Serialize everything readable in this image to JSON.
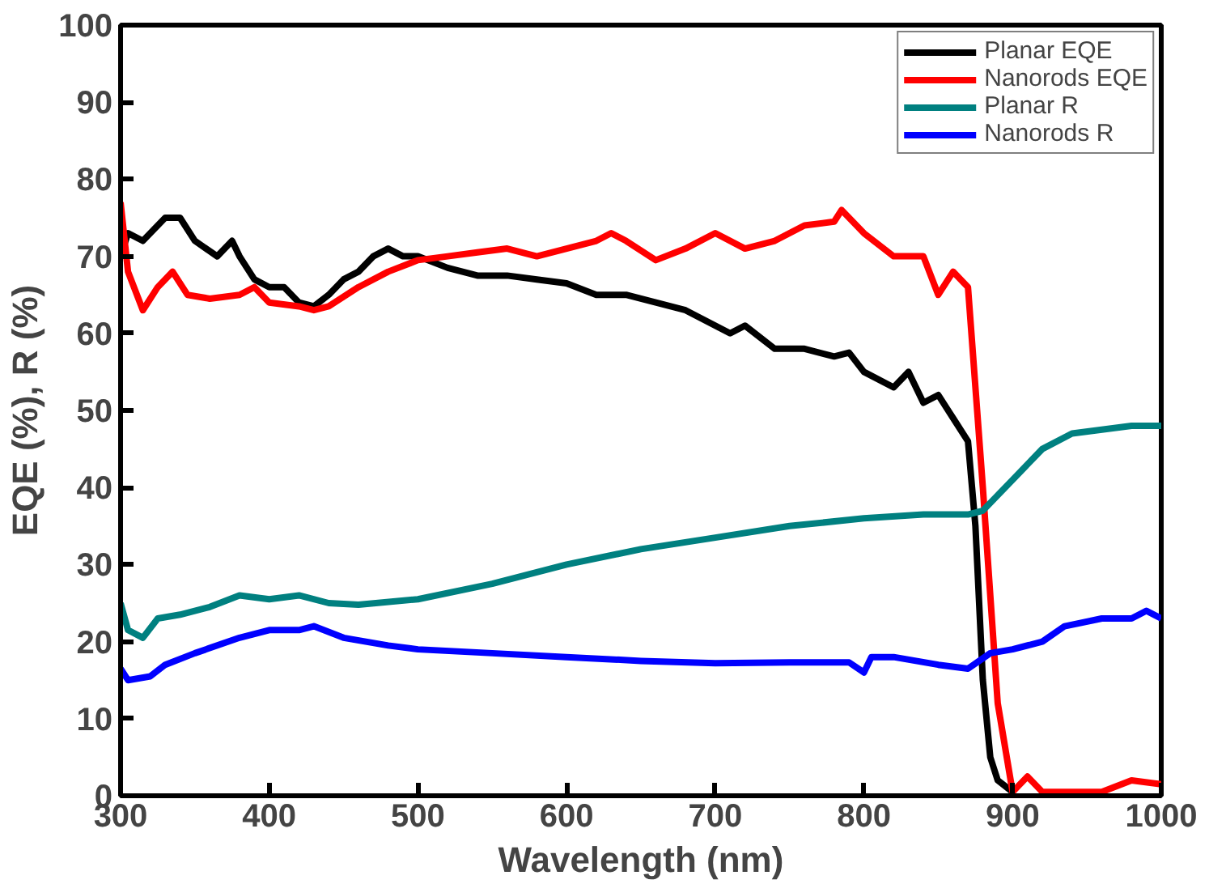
{
  "chart_data": {
    "type": "line",
    "xlabel": "Wavelength (nm)",
    "ylabel": "EQE (%), R (%)",
    "xlim": [
      300,
      1000
    ],
    "ylim": [
      0,
      100
    ],
    "xticks": [
      300,
      400,
      500,
      600,
      700,
      800,
      900,
      1000
    ],
    "yticks": [
      0,
      10,
      20,
      30,
      40,
      50,
      60,
      70,
      80,
      90,
      100
    ],
    "grid": false,
    "legend": "top right",
    "marker": "none",
    "line_style": "solid",
    "series": [
      {
        "name": "Planar EQE",
        "color": "#000000",
        "x": [
          300,
          305,
          315,
          330,
          340,
          350,
          365,
          375,
          380,
          390,
          400,
          410,
          420,
          430,
          440,
          450,
          460,
          470,
          480,
          490,
          500,
          520,
          540,
          560,
          580,
          600,
          620,
          640,
          660,
          680,
          700,
          710,
          720,
          740,
          760,
          780,
          790,
          800,
          820,
          830,
          840,
          850,
          860,
          870,
          875,
          880,
          885,
          890,
          900
        ],
        "values": [
          70,
          73,
          72,
          75,
          75,
          72,
          70,
          72,
          70,
          67,
          66,
          66,
          64,
          63.5,
          65,
          67,
          68,
          70,
          71,
          70,
          70,
          68.5,
          67.5,
          67.5,
          67,
          66.5,
          65,
          65,
          64,
          63,
          61,
          60,
          61,
          58,
          58,
          57,
          57.5,
          55,
          53,
          55,
          51,
          52,
          49,
          46,
          35,
          15,
          5,
          2,
          0.5
        ]
      },
      {
        "name": "Nanorods EQE",
        "color": "#ff0000",
        "x": [
          300,
          305,
          315,
          325,
          335,
          345,
          360,
          380,
          390,
          400,
          420,
          430,
          440,
          460,
          480,
          500,
          520,
          540,
          560,
          580,
          600,
          620,
          630,
          640,
          660,
          680,
          700,
          720,
          740,
          760,
          780,
          785,
          800,
          820,
          840,
          850,
          860,
          870,
          880,
          890,
          900,
          910,
          920,
          940,
          960,
          980,
          1000
        ],
        "values": [
          77,
          68,
          63,
          66,
          68,
          65,
          64.5,
          65,
          66,
          64,
          63.5,
          63,
          63.5,
          66,
          68,
          69.5,
          70,
          70.5,
          71,
          70,
          71,
          72,
          73,
          72,
          69.5,
          71,
          73,
          71,
          72,
          74,
          74.5,
          76,
          73,
          70,
          70,
          65,
          68,
          66,
          40,
          12,
          0.5,
          2.5,
          0.5,
          0.5,
          0.5,
          2,
          1.5
        ]
      },
      {
        "name": "Planar R",
        "color": "#008080",
        "x": [
          300,
          305,
          315,
          325,
          340,
          360,
          380,
          400,
          420,
          440,
          460,
          500,
          550,
          600,
          650,
          700,
          750,
          800,
          840,
          870,
          880,
          900,
          920,
          940,
          960,
          980,
          1000
        ],
        "values": [
          25,
          21.5,
          20.5,
          23,
          23.5,
          24.5,
          26,
          25.5,
          26,
          25,
          24.8,
          25.5,
          27.5,
          30,
          32,
          33.5,
          35,
          36,
          36.5,
          36.5,
          37,
          41,
          45,
          47,
          47.5,
          48,
          48
        ]
      },
      {
        "name": "Nanorods R",
        "color": "#0000ff",
        "x": [
          300,
          305,
          320,
          330,
          350,
          380,
          400,
          420,
          430,
          450,
          480,
          500,
          550,
          600,
          650,
          700,
          750,
          790,
          800,
          805,
          820,
          850,
          870,
          885,
          900,
          920,
          935,
          960,
          980,
          990,
          1000
        ],
        "values": [
          16.5,
          15,
          15.5,
          17,
          18.5,
          20.5,
          21.5,
          21.5,
          22,
          20.5,
          19.5,
          19,
          18.5,
          18,
          17.5,
          17.2,
          17.3,
          17.3,
          16,
          18,
          18,
          17,
          16.5,
          18.5,
          19,
          20,
          22,
          23,
          23,
          24,
          23
        ]
      }
    ]
  }
}
